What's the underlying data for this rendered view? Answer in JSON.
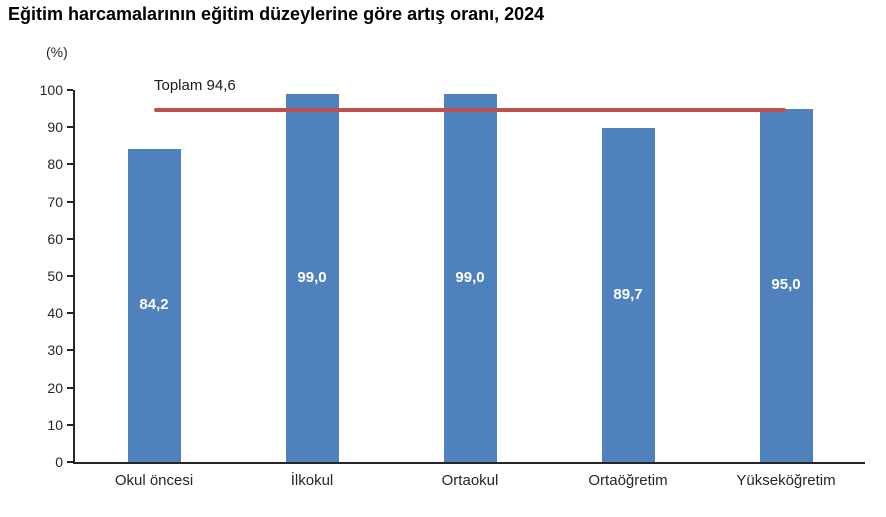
{
  "page": {
    "title": "Eğitim harcamalarının eğitim düzeylerine göre artış oranı, 2024"
  },
  "chart_data": {
    "type": "bar",
    "title": "Eğitim harcamalarının eğitim düzeylerine göre artış oranı, 2024",
    "unit_label": "(%)",
    "categories": [
      "Okul öncesi",
      "İlkokul",
      "Ortaokul",
      "Ortaöğretim",
      "Yükseköğretim"
    ],
    "values": [
      84.2,
      99.0,
      99.0,
      89.7,
      95.0
    ],
    "value_labels": [
      "84,2",
      "99,0",
      "99,0",
      "89,7",
      "95,0"
    ],
    "reference_line": {
      "value": 94.6,
      "label": "Toplam 94,6",
      "color": "#c0504d"
    },
    "ylim": [
      0,
      100
    ],
    "ytick_step": 10,
    "ytick_labels": [
      "0",
      "10",
      "20",
      "30",
      "40",
      "50",
      "60",
      "70",
      "80",
      "90",
      "100"
    ],
    "bar_color": "#4f81bd",
    "value_label_color": "#ffffff",
    "axis_color": "#262626",
    "grid": false,
    "legend": false,
    "xlabel": "",
    "ylabel": "(%)"
  }
}
